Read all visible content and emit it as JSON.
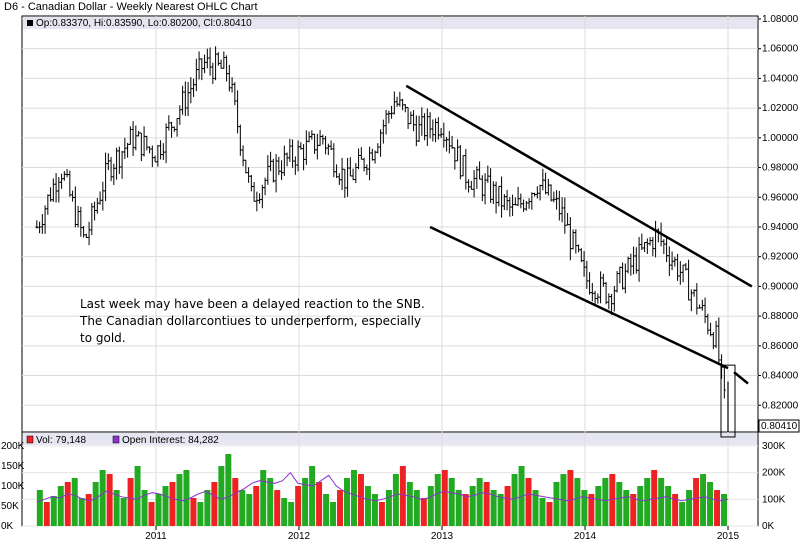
{
  "title": "D6 - Canadian Dollar - Weekly Nearest OHLC Chart",
  "price_legend": "Op:0.83370, Hi:0.83590, Lo:0.80200, Cl:0.80410",
  "last_price_label": "0.80410",
  "annotation": [
    "Last week may have been a delayed reaction to the SNB.",
    "The Canadian dollarcontiues to underperform, especially",
    "to gold."
  ],
  "volume_legend": {
    "vol": "Vol: 79,148",
    "oi": "Open Interest: 84,282"
  },
  "colors": {
    "bars": "#000000",
    "vol_up": "#22aa22",
    "vol_down": "#ee2222",
    "oi_line": "#8833cc",
    "legend_bg": "#e6e6f2"
  },
  "chart_data": {
    "type": "ohlc",
    "price_axis": {
      "ticks": [
        "1.08000",
        "1.06000",
        "1.04000",
        "1.02000",
        "1.00000",
        "0.98000",
        "0.96000",
        "0.94000",
        "0.92000",
        "0.90000",
        "0.88000",
        "0.86000",
        "0.84000",
        "0.82000"
      ],
      "range": [
        0.802,
        1.082
      ]
    },
    "x_ticks": [
      "2011",
      "2012",
      "2013",
      "2014",
      "2015"
    ],
    "volume_axis_left": [
      "200K",
      "150K",
      "100K",
      "50K",
      "0K"
    ],
    "volume_axis_right": [
      "300K",
      "200K",
      "100K",
      "0K"
    ],
    "price_path": [
      {
        "t": "2010-03",
        "close": 0.94
      },
      {
        "t": "2010-05",
        "close": 0.98
      },
      {
        "t": "2010-07",
        "close": 0.93
      },
      {
        "t": "2010-09",
        "close": 0.98
      },
      {
        "t": "2010-11",
        "close": 1.0
      },
      {
        "t": "2011-01",
        "close": 0.99
      },
      {
        "t": "2011-03",
        "close": 1.02
      },
      {
        "t": "2011-05",
        "close": 1.05
      },
      {
        "t": "2011-07",
        "close": 1.045
      },
      {
        "t": "2011-09",
        "close": 0.96
      },
      {
        "t": "2011-11",
        "close": 0.98
      },
      {
        "t": "2012-01",
        "close": 0.99
      },
      {
        "t": "2012-03",
        "close": 1.0
      },
      {
        "t": "2012-05",
        "close": 0.97
      },
      {
        "t": "2012-07",
        "close": 0.99
      },
      {
        "t": "2012-09",
        "close": 1.025
      },
      {
        "t": "2012-11",
        "close": 1.005
      },
      {
        "t": "2013-01",
        "close": 1.01
      },
      {
        "t": "2013-03",
        "close": 0.975
      },
      {
        "t": "2013-05",
        "close": 0.965
      },
      {
        "t": "2013-07",
        "close": 0.95
      },
      {
        "t": "2013-09",
        "close": 0.97
      },
      {
        "t": "2013-11",
        "close": 0.95
      },
      {
        "t": "2014-01",
        "close": 0.905
      },
      {
        "t": "2014-03",
        "close": 0.895
      },
      {
        "t": "2014-05",
        "close": 0.915
      },
      {
        "t": "2014-07",
        "close": 0.935
      },
      {
        "t": "2014-09",
        "close": 0.91
      },
      {
        "t": "2014-11",
        "close": 0.88
      },
      {
        "t": "2014-12",
        "close": 0.865
      },
      {
        "t": "2015-01",
        "close": 0.804
      }
    ],
    "volume": [
      90,
      60,
      75,
      100,
      110,
      120,
      70,
      80,
      110,
      140,
      130,
      90,
      70,
      120,
      150,
      90,
      60,
      80,
      100,
      110,
      130,
      140,
      70,
      60,
      90,
      110,
      150,
      180,
      120,
      90,
      80,
      100,
      140,
      120,
      90,
      70,
      60,
      100,
      120,
      150,
      110,
      80,
      60,
      90,
      120,
      140,
      130,
      100,
      80,
      60,
      90,
      130,
      150,
      110,
      90,
      70,
      100,
      130,
      140,
      120,
      90,
      80,
      100,
      120,
      110,
      90,
      80,
      100,
      130,
      150,
      120,
      90,
      70,
      60,
      110,
      130,
      140,
      120,
      90,
      80,
      100,
      120,
      130,
      110,
      90,
      80,
      100,
      120,
      140,
      120,
      100,
      80,
      60,
      90,
      120,
      130,
      110,
      90,
      80
    ],
    "open_interest": [
      90,
      100,
      110,
      105,
      120,
      115,
      100,
      95,
      110,
      130,
      120,
      110,
      105,
      100,
      115,
      125,
      120,
      110,
      100,
      95,
      105,
      120,
      130,
      115,
      100,
      110,
      125,
      140,
      160,
      170,
      165,
      160,
      170,
      200,
      160,
      155,
      150,
      170,
      190,
      150,
      130,
      120,
      110,
      100,
      95,
      100,
      110,
      120,
      115,
      110,
      100,
      105,
      120,
      130,
      125,
      120,
      110,
      115,
      125,
      120,
      110,
      105,
      100,
      110,
      120,
      115,
      110,
      105,
      100,
      95,
      100,
      110,
      105,
      100,
      95,
      100,
      105,
      110,
      100,
      95,
      100,
      105,
      110,
      100,
      95,
      100,
      105,
      110,
      100,
      95,
      100
    ],
    "trend_lines": [
      {
        "start": {
          "t": "2012-10",
          "y": 1.035
        },
        "end": {
          "t": "2015-03",
          "y": 0.9
        }
      },
      {
        "start": {
          "t": "2012-12",
          "y": 0.94
        },
        "end": {
          "t": "2015-01",
          "y": 0.845
        }
      }
    ]
  }
}
